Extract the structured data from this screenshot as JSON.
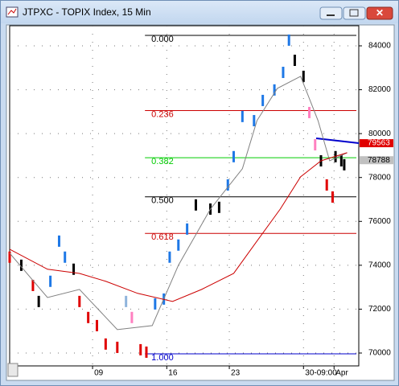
{
  "window_title": "JTPXC - TOPIX Index, 15 Min",
  "chart_data": {
    "type": "bar",
    "xlim": [
      0,
      120
    ],
    "ylim": [
      69414,
      84916
    ],
    "yticks": [
      70000,
      72000,
      74000,
      76000,
      78000,
      80000,
      82000,
      84000
    ],
    "xticks": [
      {
        "value": 28.5,
        "label": "09"
      },
      {
        "value": 54,
        "label": "16"
      },
      {
        "value": 75.5,
        "label": "23"
      },
      {
        "value": 101,
        "label": "30-09:00"
      },
      {
        "value": 111.5,
        "label": "Apr"
      }
    ],
    "grid": true,
    "series": [
      {
        "name": "price",
        "x": [
          0,
          4,
          8,
          10,
          14,
          17,
          19,
          22,
          24,
          27,
          30,
          33,
          37,
          40,
          42,
          45,
          47,
          50,
          53,
          55,
          58,
          61,
          64,
          69,
          72,
          75,
          77,
          80,
          84,
          87,
          91,
          94,
          96,
          98,
          101,
          103,
          105,
          107,
          109,
          111,
          112,
          114,
          115
        ],
        "values": [
          74370,
          74000,
          73080,
          72350,
          73270,
          75100,
          74370,
          73820,
          72350,
          71620,
          71250,
          70410,
          70260,
          72350,
          71620,
          70150,
          70040,
          72240,
          72460,
          74370,
          74920,
          75650,
          76750,
          76560,
          76640,
          77660,
          78950,
          80780,
          80590,
          81510,
          81990,
          82790,
          84260,
          83340,
          82610,
          80960,
          79490,
          78760,
          77660,
          77110,
          78950,
          78760,
          78580
        ],
        "colors": [
          "#e00000",
          "#000000",
          "#e00000",
          "#000000",
          "#1e78e6",
          "#1e78e6",
          "#1e78e6",
          "#000000",
          "#e00000",
          "#e00000",
          "#e00000",
          "#e00000",
          "#e00000",
          "#8fb4dc",
          "#ff80c0",
          "#e00000",
          "#e00000",
          "#1e78e6",
          "#1e78e6",
          "#1e78e6",
          "#1e78e6",
          "#1e78e6",
          "#000000",
          "#000000",
          "#000000",
          "#1e78e6",
          "#1e78e6",
          "#1e78e6",
          "#1e78e6",
          "#1e78e6",
          "#1e78e6",
          "#1e78e6",
          "#1e78e6",
          "#000000",
          "#000000",
          "#ff80c0",
          "#ff80c0",
          "#000000",
          "#e00000",
          "#e00000",
          "#000000",
          "#000000",
          "#000000"
        ]
      },
      {
        "name": "fast-ma",
        "line": true,
        "color": "#808080",
        "x": [
          0,
          13,
          24,
          37,
          49,
          58,
          69,
          80,
          85,
          92,
          100,
          106,
          110,
          116
        ],
        "values": [
          74550,
          72530,
          72900,
          71070,
          71250,
          74000,
          76560,
          78400,
          80590,
          82060,
          82610,
          80590,
          78760,
          79130
        ]
      },
      {
        "name": "slow-ma",
        "line": true,
        "color": "#cc0000",
        "x": [
          0,
          13,
          24,
          33,
          44,
          56,
          66,
          77,
          85,
          93,
          100,
          107,
          116
        ],
        "values": [
          74730,
          73820,
          73630,
          73270,
          72720,
          72350,
          72900,
          73630,
          75100,
          76560,
          78030,
          78760,
          79130
        ]
      }
    ],
    "fib_start": 46.5,
    "fib_levels": [
      {
        "value": 84476,
        "label": "0.000",
        "color": "#000000"
      },
      {
        "value": 81048,
        "label": "0.236",
        "color": "#cc0000"
      },
      {
        "value": 78901,
        "label": "0.382",
        "color": "#00cc00"
      },
      {
        "value": 77121,
        "label": "0.500",
        "color": "#000000"
      },
      {
        "value": 75451,
        "label": "0.618",
        "color": "#cc0000"
      },
      {
        "value": 69963,
        "label": "1.000",
        "color": "#0000cc"
      }
    ],
    "price_labels": [
      {
        "value": 79563,
        "label": "79563",
        "color": "#e00000"
      },
      {
        "value": 78788,
        "label": "78788",
        "color": "#c0c0c0"
      }
    ]
  }
}
